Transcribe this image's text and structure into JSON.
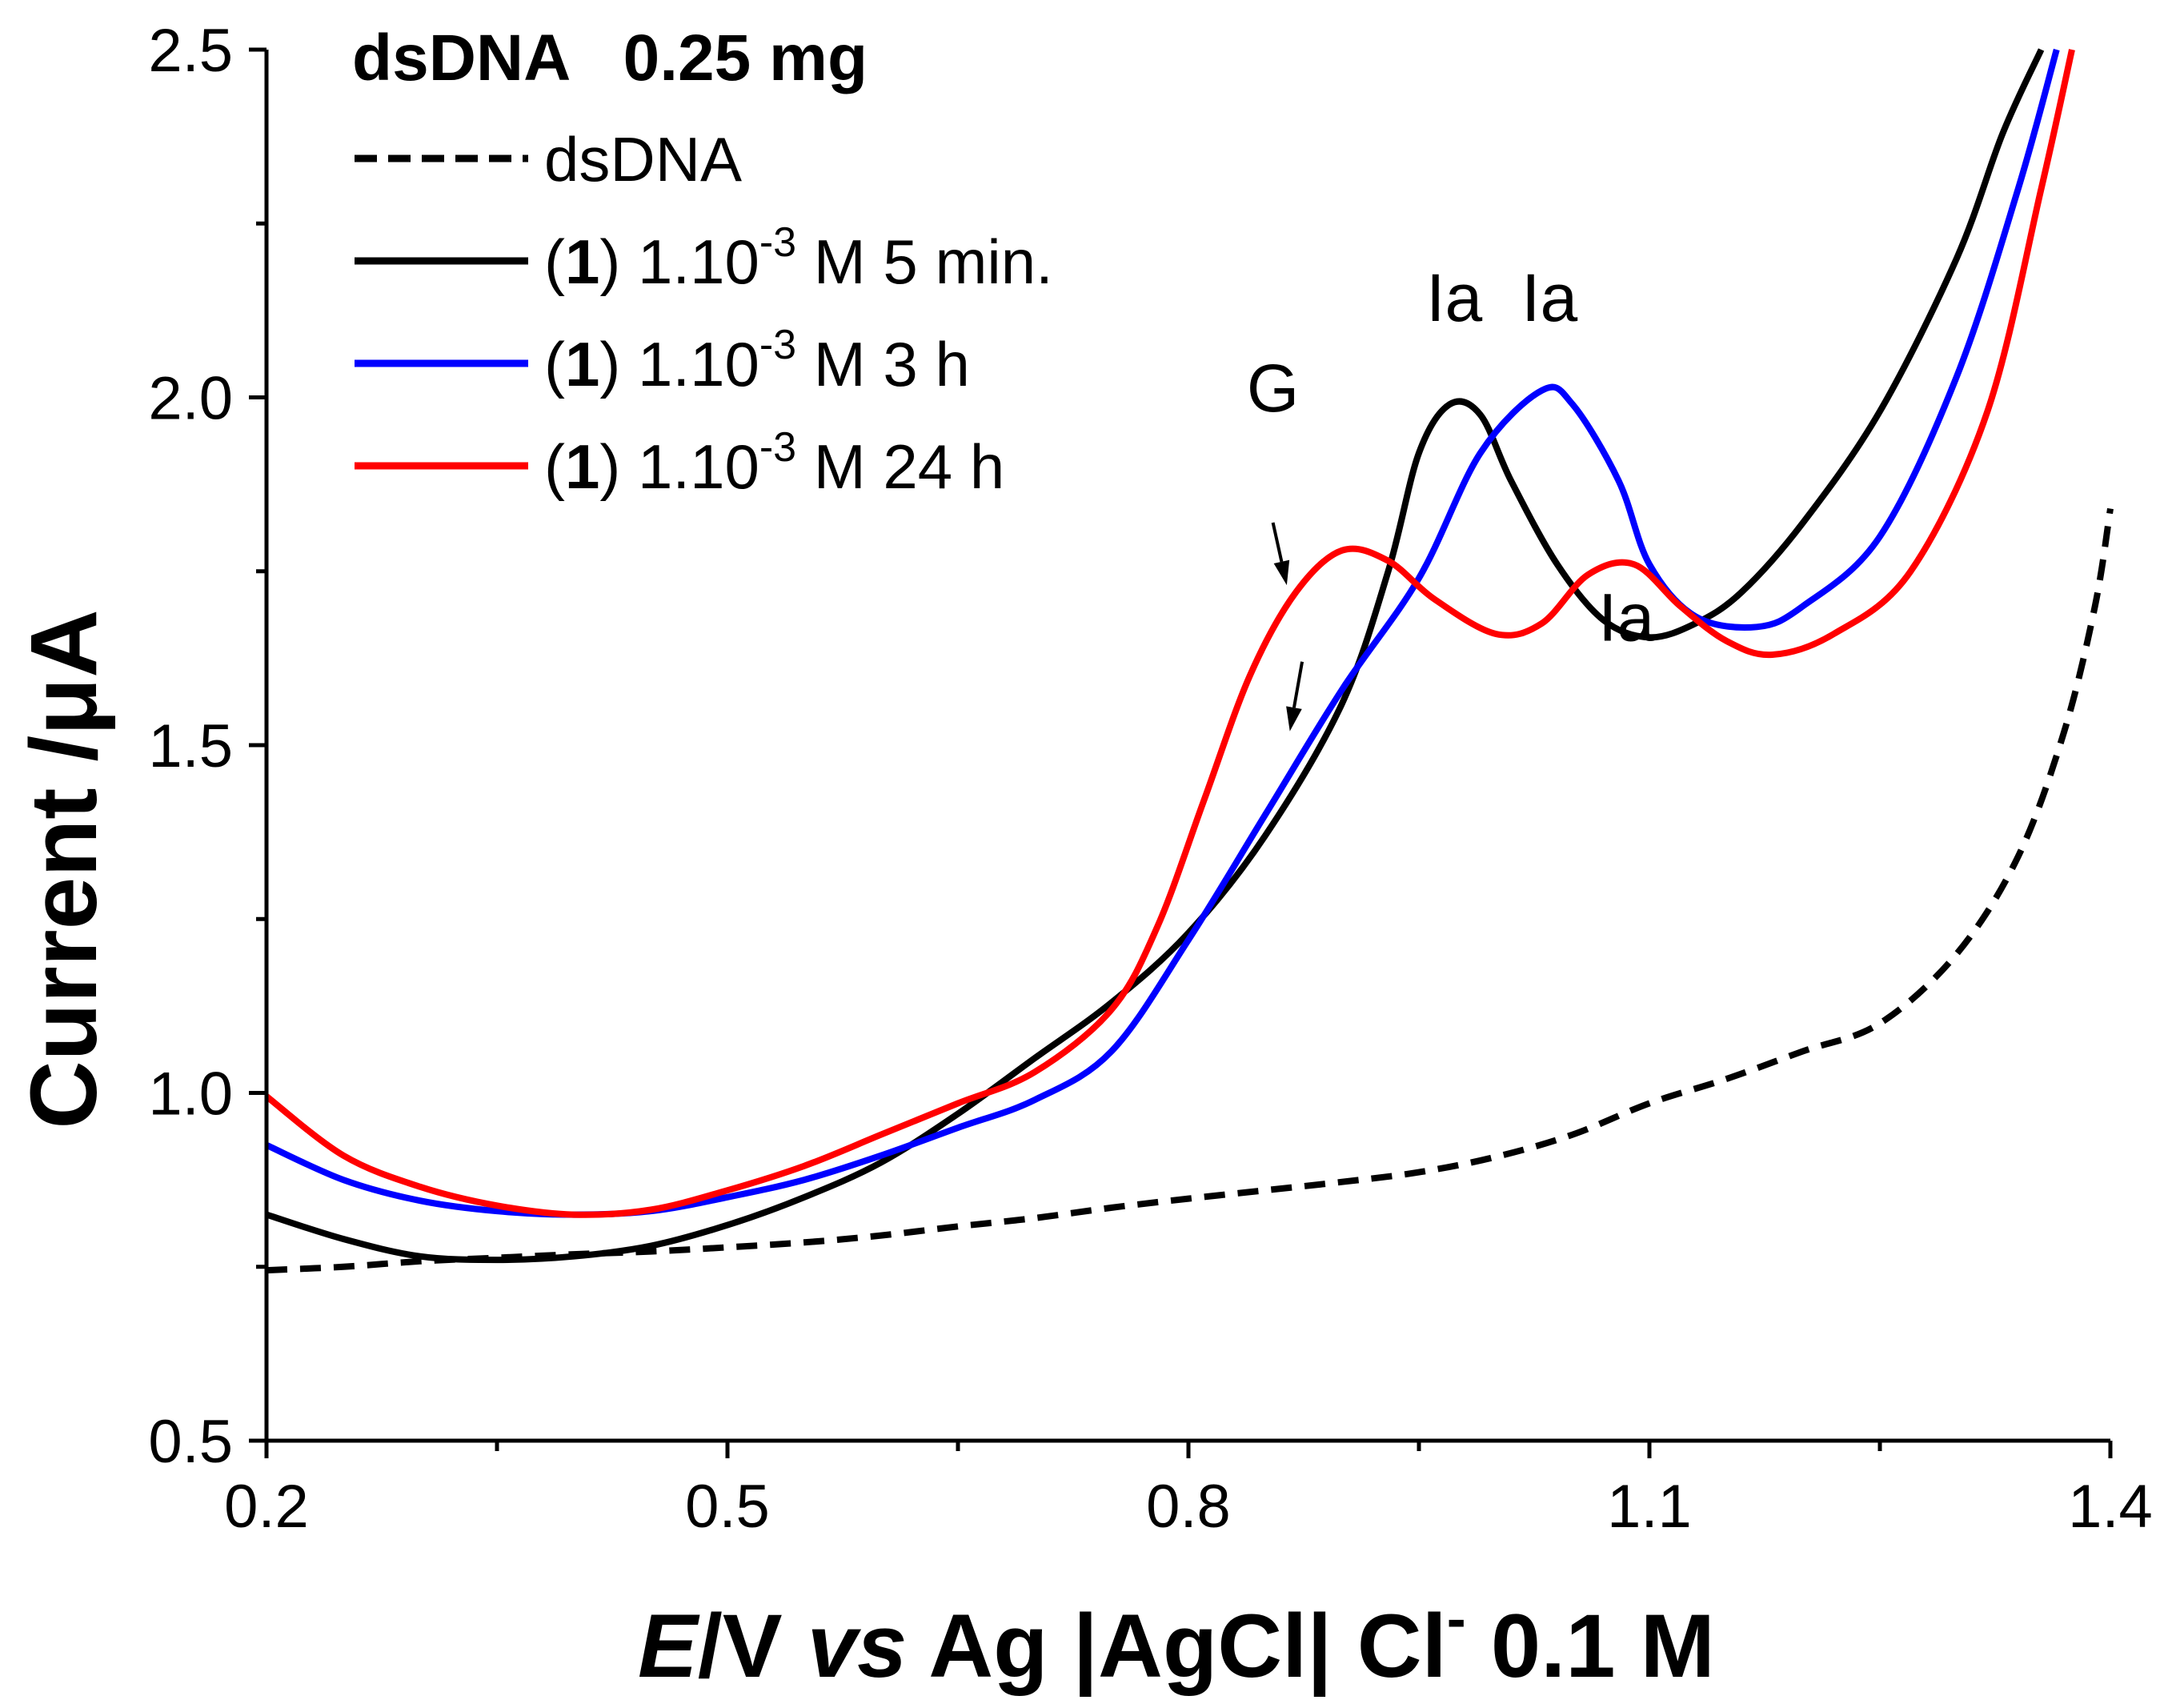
{
  "chart_data": {
    "type": "line",
    "title": "dsDNA   0.25 mg",
    "xlabel": {
      "italic_part": "E",
      "part2": "/V ",
      "italic_part2": "vs",
      "part3": " Ag |AgCl| Cl",
      "superscript": "-",
      "part4": " 0.1 M"
    },
    "ylabel": "Current /μA",
    "xlim": [
      0.2,
      1.4
    ],
    "ylim": [
      0.5,
      2.5
    ],
    "xticks": [
      0.2,
      0.5,
      0.8,
      1.1,
      1.4
    ],
    "xtick_labels": [
      "0.2",
      "0.5",
      "0.8",
      "1.1",
      "1.4"
    ],
    "yticks": [
      0.5,
      1.0,
      1.5,
      2.0,
      2.5
    ],
    "ytick_labels": [
      "0.5",
      "1.0",
      "1.5",
      "2.0",
      "2.5"
    ],
    "grid": false,
    "legend_position": "top-left",
    "series": [
      {
        "name": "dsDNA",
        "color": "#000000",
        "dash": "dashed",
        "legend": {
          "prefix": "",
          "bold": "",
          "mid": "dsDNA",
          "sup": "",
          "suffix": ""
        },
        "points": [
          [
            0.2,
            0.745
          ],
          [
            0.25,
            0.75
          ],
          [
            0.3,
            0.758
          ],
          [
            0.35,
            0.763
          ],
          [
            0.4,
            0.768
          ],
          [
            0.45,
            0.772
          ],
          [
            0.5,
            0.778
          ],
          [
            0.55,
            0.785
          ],
          [
            0.6,
            0.795
          ],
          [
            0.65,
            0.808
          ],
          [
            0.7,
            0.82
          ],
          [
            0.75,
            0.835
          ],
          [
            0.8,
            0.848
          ],
          [
            0.85,
            0.86
          ],
          [
            0.9,
            0.872
          ],
          [
            0.95,
            0.886
          ],
          [
            1.0,
            0.908
          ],
          [
            1.05,
            0.94
          ],
          [
            1.1,
            0.985
          ],
          [
            1.15,
            1.02
          ],
          [
            1.2,
            1.06
          ],
          [
            1.25,
            1.1
          ],
          [
            1.3,
            1.2
          ],
          [
            1.34,
            1.34
          ],
          [
            1.37,
            1.52
          ],
          [
            1.39,
            1.7
          ],
          [
            1.4,
            1.84
          ]
        ]
      },
      {
        "name": "(1) 1.10-3 M 5 min.",
        "color": "#000000",
        "dash": "solid",
        "legend": {
          "prefix": "(",
          "bold": "1",
          "mid": ") 1.10",
          "sup": "-3",
          "suffix": " M 5 min."
        },
        "points": [
          [
            0.2,
            0.825
          ],
          [
            0.25,
            0.79
          ],
          [
            0.3,
            0.765
          ],
          [
            0.35,
            0.76
          ],
          [
            0.4,
            0.765
          ],
          [
            0.45,
            0.78
          ],
          [
            0.5,
            0.81
          ],
          [
            0.55,
            0.85
          ],
          [
            0.6,
            0.9
          ],
          [
            0.65,
            0.97
          ],
          [
            0.7,
            1.05
          ],
          [
            0.75,
            1.13
          ],
          [
            0.8,
            1.23
          ],
          [
            0.85,
            1.37
          ],
          [
            0.9,
            1.56
          ],
          [
            0.93,
            1.75
          ],
          [
            0.95,
            1.92
          ],
          [
            0.97,
            1.99
          ],
          [
            0.99,
            1.975
          ],
          [
            1.01,
            1.88
          ],
          [
            1.04,
            1.76
          ],
          [
            1.07,
            1.68
          ],
          [
            1.1,
            1.655
          ],
          [
            1.13,
            1.675
          ],
          [
            1.16,
            1.72
          ],
          [
            1.2,
            1.82
          ],
          [
            1.25,
            1.98
          ],
          [
            1.3,
            2.2
          ],
          [
            1.33,
            2.38
          ],
          [
            1.355,
            2.5
          ]
        ]
      },
      {
        "name": "(1) 1.10-3 M 3 h",
        "color": "#0000ff",
        "dash": "solid",
        "legend": {
          "prefix": "(",
          "bold": "1",
          "mid": ") 1.10",
          "sup": "-3",
          "suffix": " M 3 h"
        },
        "points": [
          [
            0.2,
            0.925
          ],
          [
            0.25,
            0.875
          ],
          [
            0.3,
            0.845
          ],
          [
            0.35,
            0.83
          ],
          [
            0.4,
            0.825
          ],
          [
            0.45,
            0.83
          ],
          [
            0.5,
            0.85
          ],
          [
            0.55,
            0.875
          ],
          [
            0.6,
            0.91
          ],
          [
            0.65,
            0.95
          ],
          [
            0.7,
            0.99
          ],
          [
            0.75,
            1.06
          ],
          [
            0.8,
            1.22
          ],
          [
            0.85,
            1.4
          ],
          [
            0.9,
            1.58
          ],
          [
            0.95,
            1.74
          ],
          [
            0.99,
            1.92
          ],
          [
            1.03,
            2.01
          ],
          [
            1.05,
            1.99
          ],
          [
            1.08,
            1.88
          ],
          [
            1.1,
            1.76
          ],
          [
            1.13,
            1.685
          ],
          [
            1.17,
            1.67
          ],
          [
            1.2,
            1.7
          ],
          [
            1.25,
            1.8
          ],
          [
            1.3,
            2.03
          ],
          [
            1.34,
            2.3
          ],
          [
            1.365,
            2.5
          ]
        ]
      },
      {
        "name": "(1) 1.10-3 M 24 h",
        "color": "#ff0000",
        "dash": "solid",
        "legend": {
          "prefix": "(",
          "bold": "1",
          "mid": ") 1.10",
          "sup": "-3",
          "suffix": " M 24 h"
        },
        "points": [
          [
            0.2,
            0.995
          ],
          [
            0.25,
            0.91
          ],
          [
            0.3,
            0.865
          ],
          [
            0.35,
            0.838
          ],
          [
            0.4,
            0.825
          ],
          [
            0.45,
            0.832
          ],
          [
            0.5,
            0.86
          ],
          [
            0.55,
            0.895
          ],
          [
            0.6,
            0.94
          ],
          [
            0.65,
            0.985
          ],
          [
            0.7,
            1.03
          ],
          [
            0.75,
            1.12
          ],
          [
            0.78,
            1.24
          ],
          [
            0.81,
            1.42
          ],
          [
            0.84,
            1.6
          ],
          [
            0.87,
            1.72
          ],
          [
            0.9,
            1.78
          ],
          [
            0.93,
            1.765
          ],
          [
            0.96,
            1.71
          ],
          [
            1.0,
            1.66
          ],
          [
            1.03,
            1.675
          ],
          [
            1.06,
            1.745
          ],
          [
            1.09,
            1.76
          ],
          [
            1.12,
            1.7
          ],
          [
            1.15,
            1.65
          ],
          [
            1.18,
            1.63
          ],
          [
            1.22,
            1.66
          ],
          [
            1.27,
            1.75
          ],
          [
            1.32,
            1.98
          ],
          [
            1.355,
            2.3
          ],
          [
            1.375,
            2.5
          ]
        ]
      }
    ],
    "annotations": [
      {
        "label": "G",
        "x": 0.855,
        "y": 1.98
      },
      {
        "label": "Ia",
        "x": 0.973,
        "y": 2.11
      },
      {
        "label": "Ia",
        "x": 1.035,
        "y": 2.11
      },
      {
        "label": "Ia",
        "x": 1.085,
        "y": 1.65
      }
    ],
    "arrows": [
      {
        "name": "g-arrow-upper",
        "x1": 0.855,
        "y1": 1.82,
        "x2": 0.864,
        "y2": 1.73
      },
      {
        "name": "g-arrow-lower",
        "x1": 0.874,
        "y1": 1.62,
        "x2": 0.866,
        "y2": 1.52
      }
    ]
  }
}
